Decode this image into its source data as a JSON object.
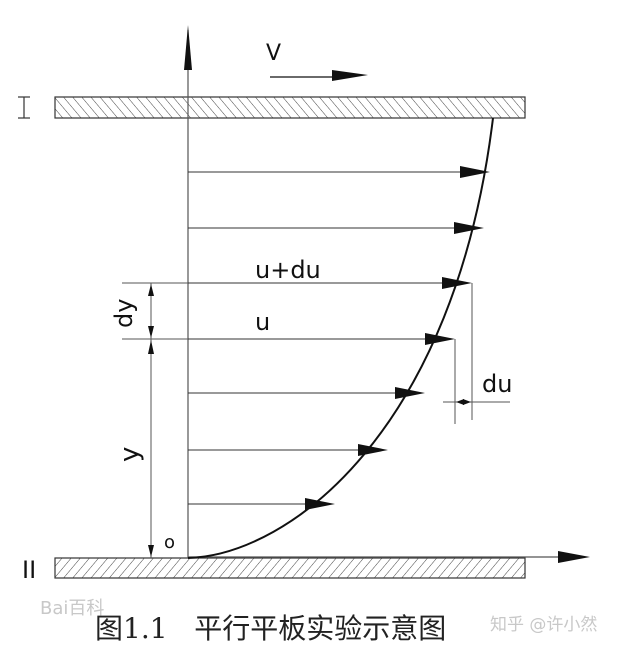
{
  "labels": {
    "velocity": "V",
    "plate_top": "I",
    "plate_bottom": "II",
    "u_plus_du": "u+du",
    "u": "u",
    "du": "du",
    "dy": "dy",
    "y": "y",
    "origin": "o"
  },
  "caption": "图1.1   平行平板实验示意图",
  "watermarks": {
    "left": "Bai百科",
    "right": "知乎 @许小然"
  },
  "colors": {
    "line": "#111111",
    "axis": "#555555",
    "watermark": "#c8c8c8"
  }
}
